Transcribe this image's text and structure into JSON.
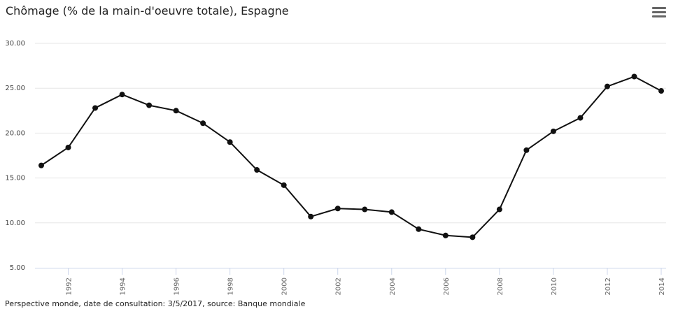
{
  "header": {
    "title": "Chômage (% de la main-d'oeuvre totale), Espagne",
    "menu_icon": "hamburger-menu-icon"
  },
  "footer": {
    "text": "Perspective monde, date de consultation: 3/5/2017, source: Banque mondiale"
  },
  "chart_data": {
    "type": "line",
    "title": "Chômage (% de la main-d'oeuvre totale), Espagne",
    "xlabel": "",
    "ylabel": "",
    "x": [
      1991,
      1992,
      1993,
      1994,
      1995,
      1996,
      1997,
      1998,
      1999,
      2000,
      2001,
      2002,
      2003,
      2004,
      2005,
      2006,
      2007,
      2008,
      2009,
      2010,
      2011,
      2012,
      2013,
      2014
    ],
    "series": [
      {
        "values": [
          16.4,
          18.4,
          22.8,
          24.3,
          23.1,
          22.5,
          21.1,
          19.0,
          15.9,
          14.2,
          10.7,
          11.6,
          11.5,
          11.2,
          9.3,
          8.6,
          8.4,
          11.5,
          18.1,
          20.2,
          21.7,
          25.2,
          26.3,
          24.7
        ],
        "color": "#111111"
      }
    ],
    "ylim": [
      5,
      30
    ],
    "yticks": [
      "5.00",
      "10.00",
      "15.00",
      "20.00",
      "25.00",
      "30.00"
    ],
    "xticks": [
      "1992",
      "1994",
      "1996",
      "1998",
      "2000",
      "2002",
      "2004",
      "2006",
      "2008",
      "2010",
      "2012",
      "2014"
    ],
    "grid": true,
    "legend": false
  }
}
